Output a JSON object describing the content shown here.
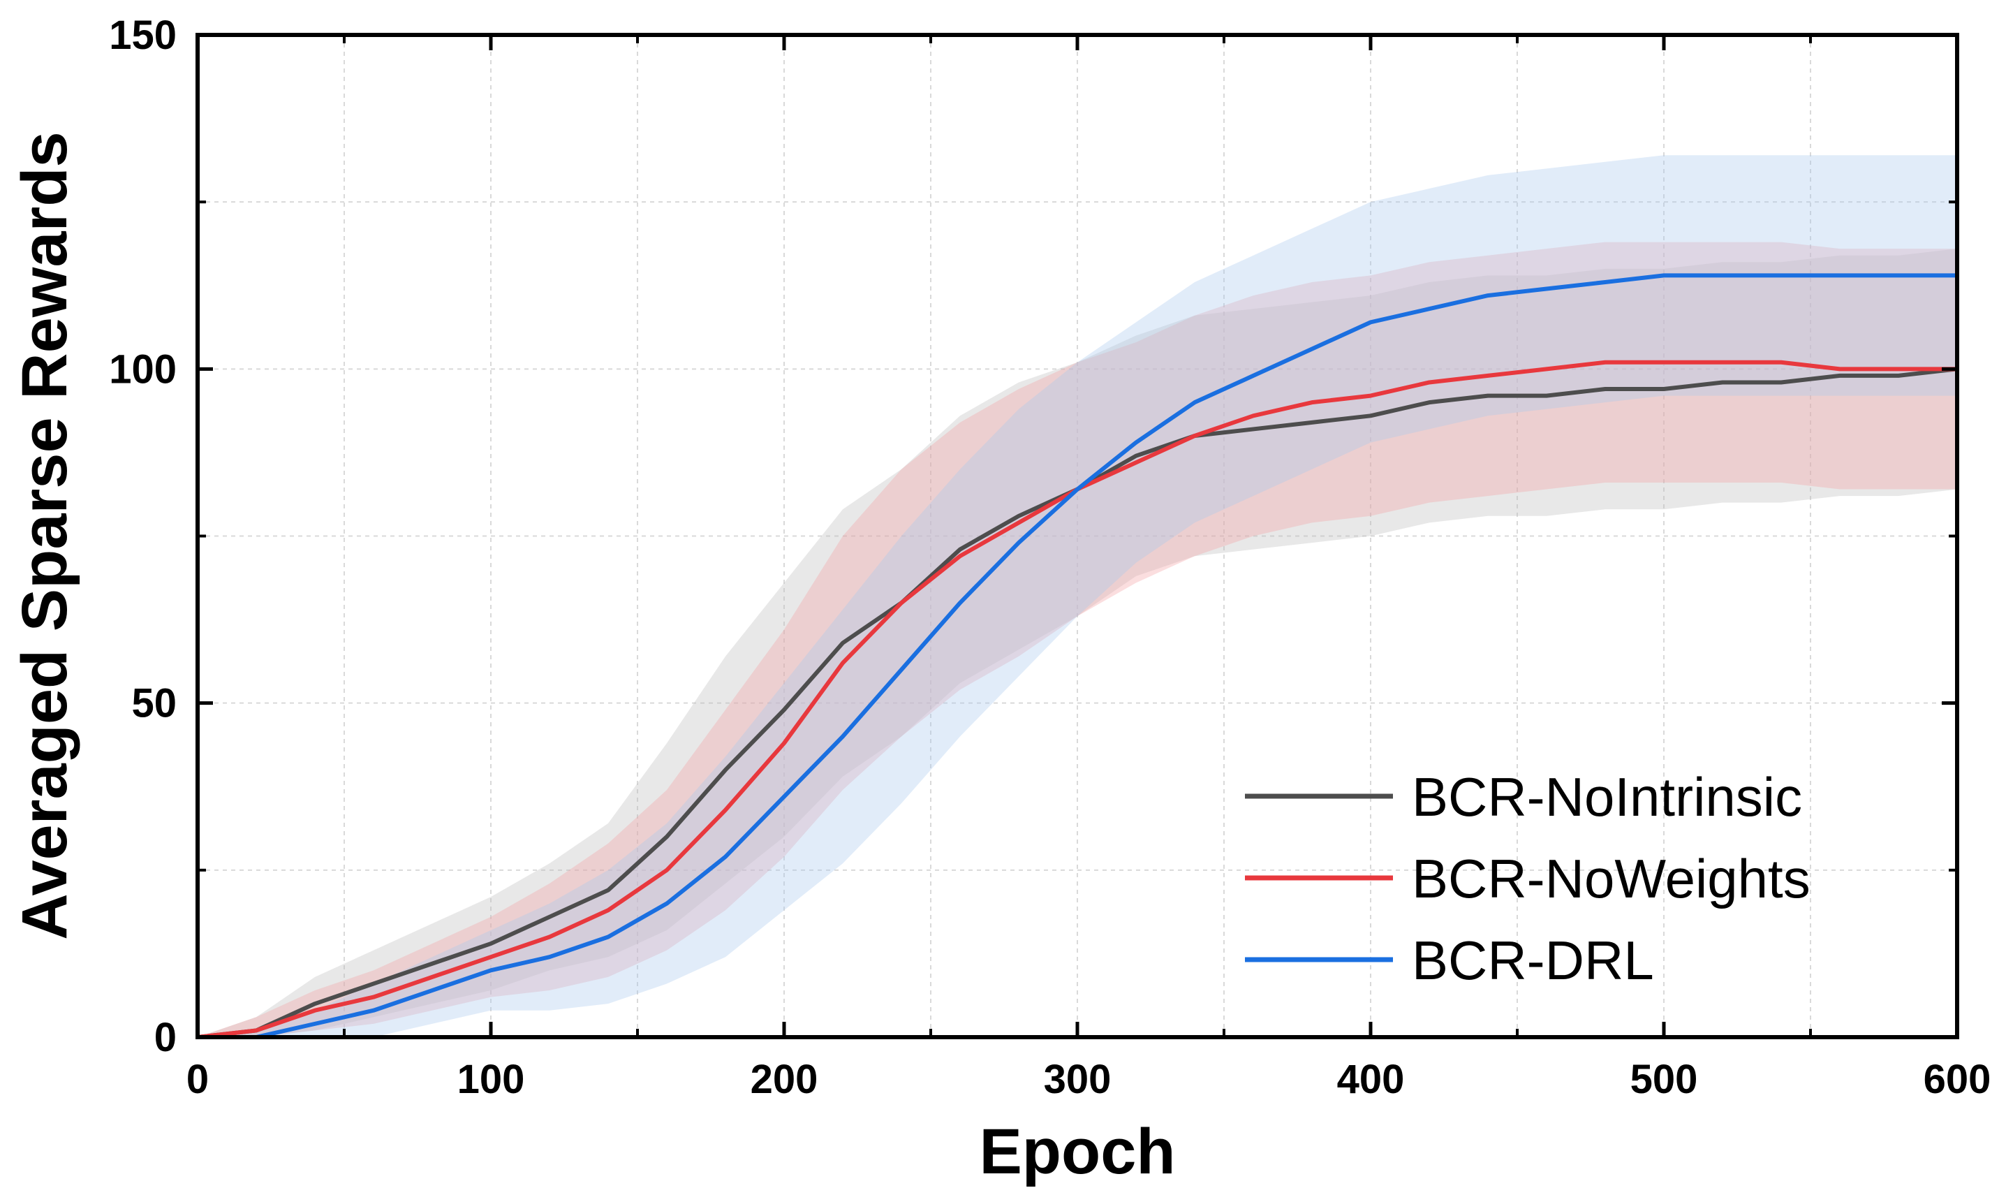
{
  "chart_data": {
    "type": "line",
    "title": "",
    "xlabel": "Epoch",
    "ylabel": "Averaged Sparse Rewards",
    "xlim": [
      0,
      600
    ],
    "ylim": [
      0,
      150
    ],
    "xticks": [
      0,
      100,
      200,
      300,
      400,
      500,
      600
    ],
    "yticks": [
      0,
      50,
      100,
      150
    ],
    "minor_xticks": [
      50,
      150,
      250,
      350,
      450,
      550
    ],
    "minor_yticks": [
      25,
      75,
      125
    ],
    "grid": true,
    "legend_position": "bottom-right",
    "x": [
      0,
      20,
      40,
      60,
      80,
      100,
      120,
      140,
      160,
      180,
      200,
      220,
      240,
      260,
      280,
      300,
      320,
      340,
      360,
      380,
      400,
      420,
      440,
      460,
      480,
      500,
      520,
      540,
      560,
      580,
      600
    ],
    "series": [
      {
        "name": "BCR-NoIntrinsic",
        "color": "#4d4d4d",
        "band_color": "#bdbdbd",
        "values": [
          0,
          1,
          5,
          8,
          11,
          14,
          18,
          22,
          30,
          40,
          49,
          59,
          65,
          73,
          78,
          82,
          87,
          90,
          91,
          92,
          93,
          95,
          96,
          96,
          97,
          97,
          98,
          98,
          99,
          99,
          100
        ],
        "band": [
          0,
          2,
          4,
          5,
          6,
          7,
          8,
          10,
          14,
          17,
          19,
          20,
          20,
          20,
          20,
          19,
          18,
          18,
          18,
          18,
          18,
          18,
          18,
          18,
          18,
          18,
          18,
          18,
          18,
          18,
          18
        ]
      },
      {
        "name": "BCR-NoWeights",
        "color": "#e8383d",
        "band_color": "#f4a0a2",
        "values": [
          0,
          1,
          4,
          6,
          9,
          12,
          15,
          19,
          25,
          34,
          44,
          56,
          65,
          72,
          77,
          82,
          86,
          90,
          93,
          95,
          96,
          98,
          99,
          100,
          101,
          101,
          101,
          101,
          100,
          100,
          100
        ],
        "band": [
          0,
          2,
          3,
          4,
          5,
          6,
          8,
          10,
          12,
          15,
          17,
          19,
          20,
          20,
          20,
          19,
          18,
          18,
          18,
          18,
          18,
          18,
          18,
          18,
          18,
          18,
          18,
          18,
          18,
          18,
          18
        ]
      },
      {
        "name": "BCR-DRL",
        "color": "#1a6fe0",
        "band_color": "#a9c8ef",
        "values": [
          0,
          0,
          2,
          4,
          7,
          10,
          12,
          15,
          20,
          27,
          36,
          45,
          55,
          65,
          74,
          82,
          89,
          95,
          99,
          103,
          107,
          109,
          111,
          112,
          113,
          114,
          114,
          114,
          114,
          114,
          114
        ],
        "band": [
          0,
          1,
          2,
          4,
          5,
          6,
          8,
          10,
          12,
          15,
          17,
          19,
          20,
          20,
          20,
          19,
          18,
          18,
          18,
          18,
          18,
          18,
          18,
          18,
          18,
          18,
          18,
          18,
          18,
          18,
          18
        ]
      }
    ]
  }
}
